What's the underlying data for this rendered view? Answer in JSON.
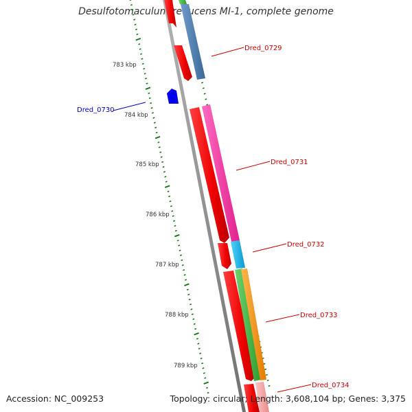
{
  "title": "Desulfotomaculum reducens MI-1, complete genome",
  "footer": {
    "accession": "Accession: NC_009253",
    "summary": "Topology: circular; Length: 3,608,104 bp; Genes: 3,375"
  },
  "ticks": [
    "783 kbp",
    "784 kbp",
    "785 kbp",
    "786 kbp",
    "787 kbp",
    "788 kbp",
    "789 kbp"
  ],
  "genes": [
    {
      "name": "Dred_0729",
      "color": "#cc0000"
    },
    {
      "name": "Dred_0730",
      "color": "#0000cc"
    },
    {
      "name": "Dred_0731",
      "color": "#cc0000"
    },
    {
      "name": "Dred_0732",
      "color": "#cc0000"
    },
    {
      "name": "Dred_0733",
      "color": "#cc0000"
    },
    {
      "name": "Dred_0734",
      "color": "#cc0000"
    }
  ],
  "colors": {
    "backbone": "#8c8c8c",
    "cds": "#ff0000",
    "tick": "#1a7a1a",
    "steelblue": "#4d7fb0",
    "magenta": "#ff3aa8",
    "cyan": "#12b5ea",
    "green": "#44bb44",
    "orange": "#ff9a1a",
    "pink": "#f9a6a6",
    "minus_strand": "#0000ee"
  }
}
